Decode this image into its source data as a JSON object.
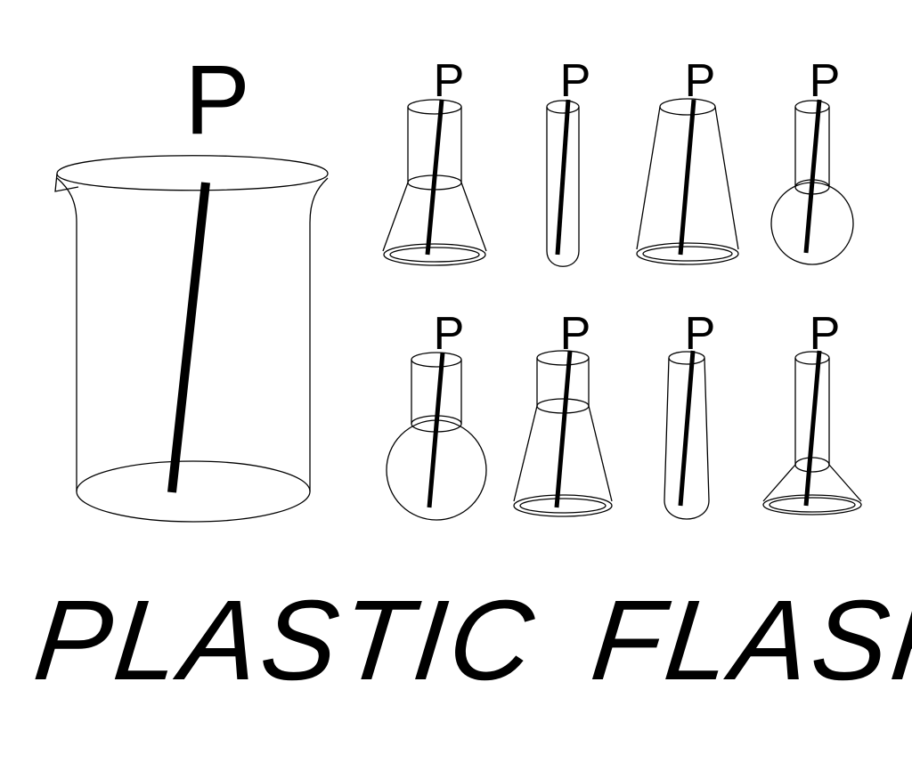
{
  "logo": {
    "glyph": "P",
    "word_1": "PLASTIC",
    "word_2": "FLASK",
    "icons": [
      "beaker-icon",
      "erlenmeyer-flask-icon",
      "test-tube-icon",
      "tapered-beaker-icon",
      "round-bottom-flask-icon",
      "large-round-flask-icon",
      "erlenmeyer-flask-icon",
      "tapered-tube-icon",
      "funnel-flask-icon"
    ]
  },
  "colors": {
    "ink": "#000000",
    "background": "#ffffff"
  }
}
